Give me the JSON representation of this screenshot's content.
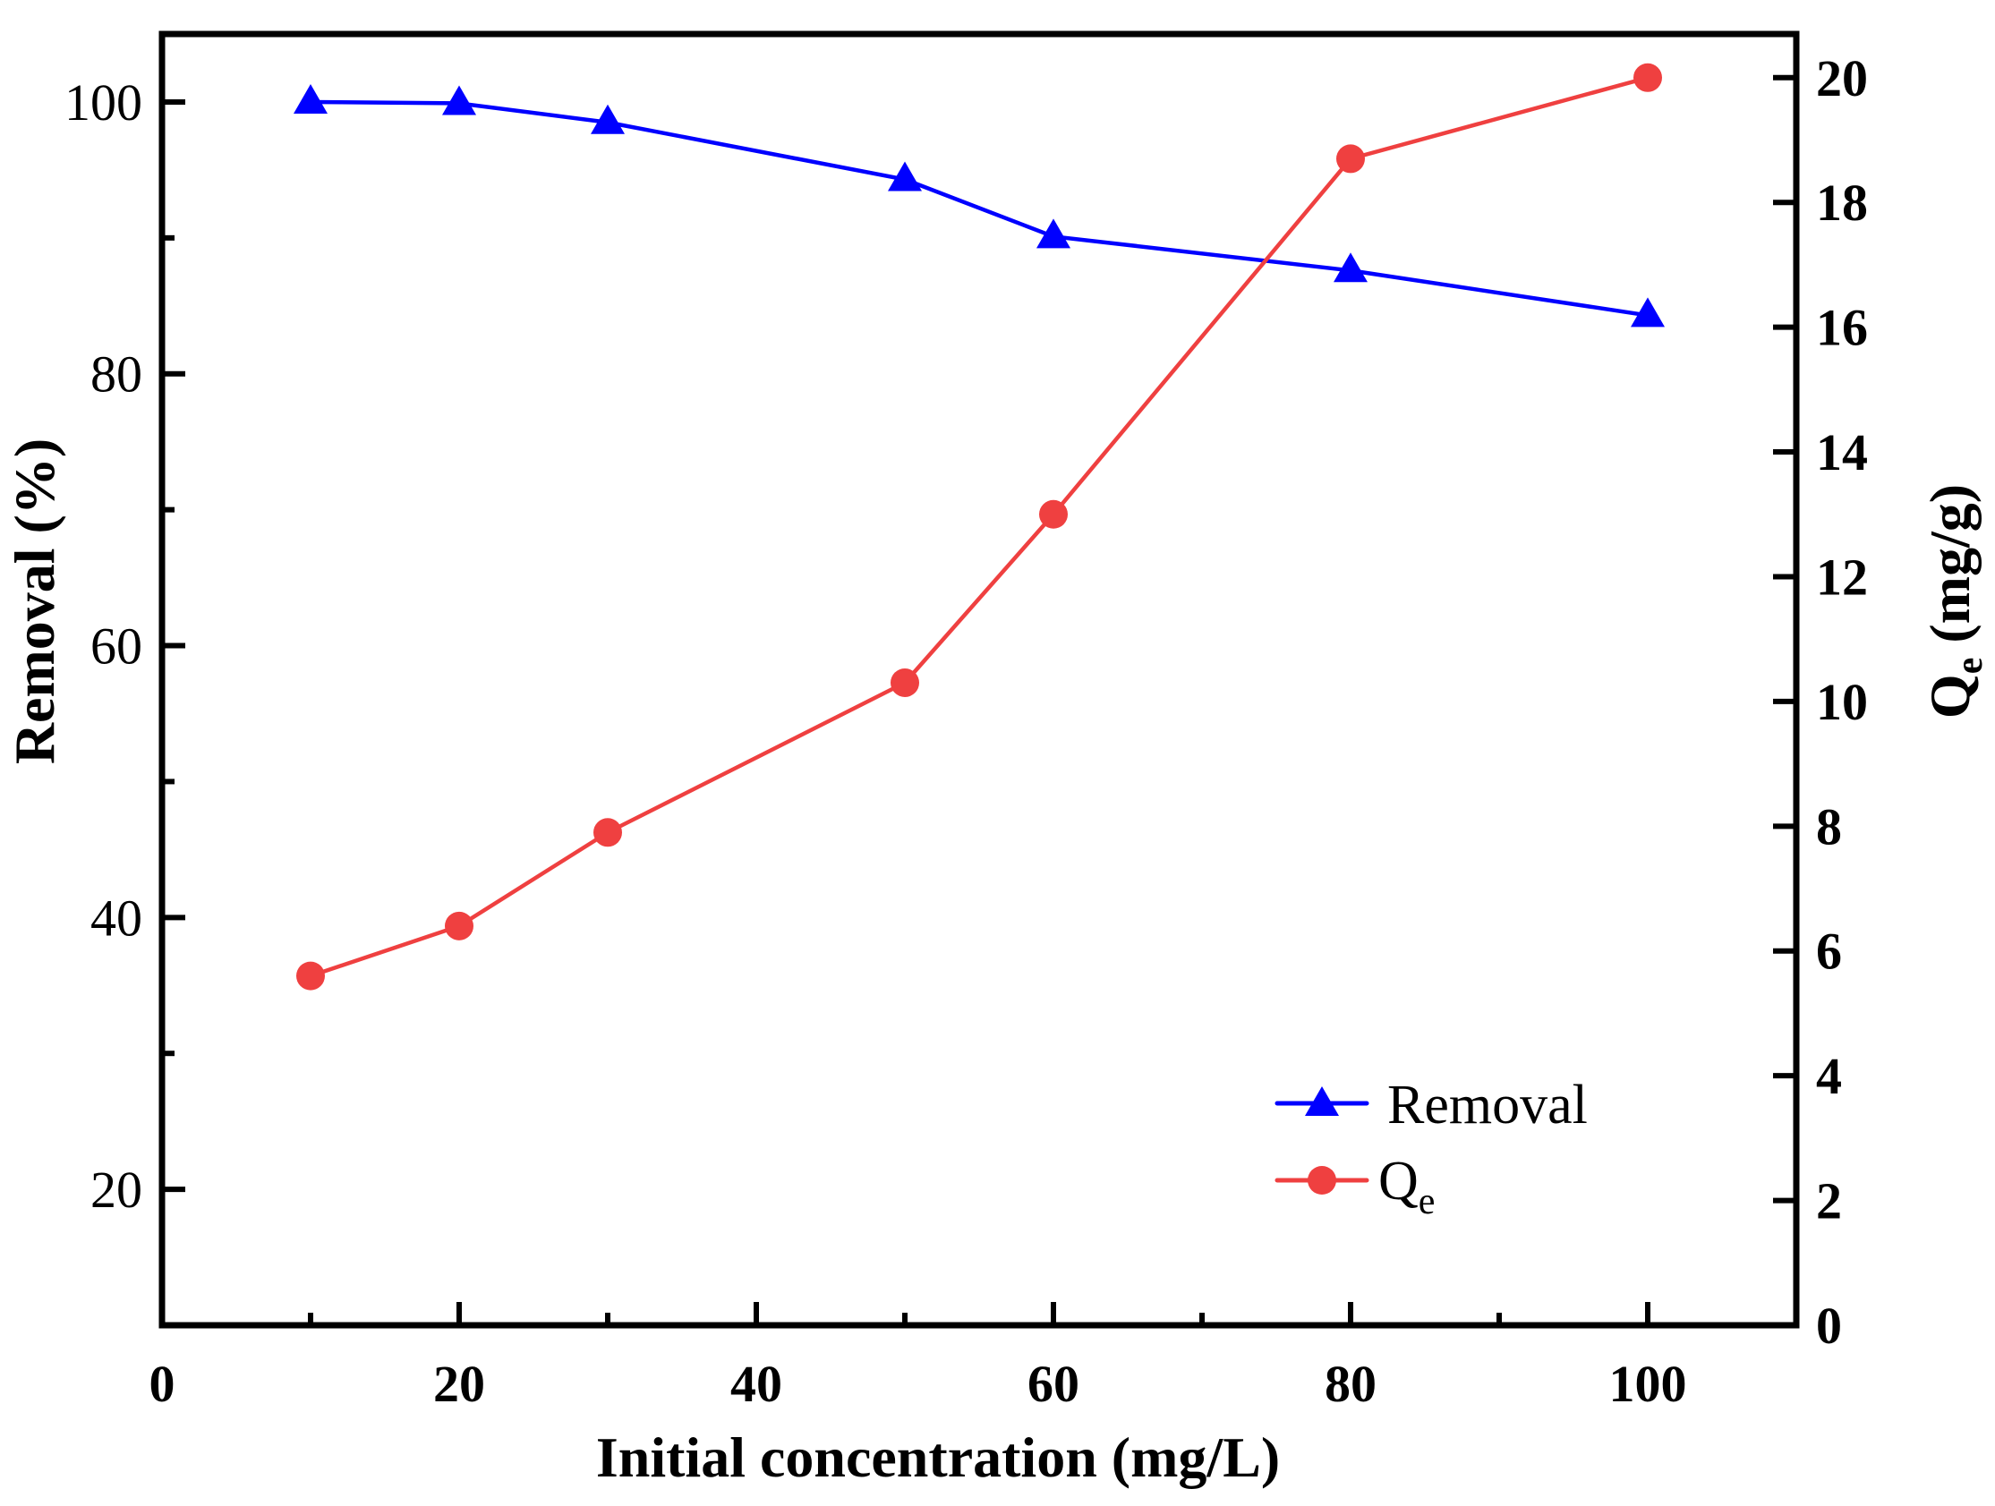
{
  "chart_data": {
    "type": "line",
    "title": "",
    "xlabel": "Initial concentration (mg/L)",
    "ylabel_left": "Removal (%)",
    "ylabel_right_main": "Q",
    "ylabel_right_sub": "e",
    "ylabel_right_unit": " (mg/g)",
    "xlim": [
      0,
      110
    ],
    "ylim_left": [
      10,
      105
    ],
    "ylim_right": [
      0,
      20.7
    ],
    "x_ticks": [
      "0",
      "20",
      "40",
      "60",
      "80",
      "100"
    ],
    "y_left_ticks": [
      "20",
      "40",
      "60",
      "80",
      "100"
    ],
    "y_right_ticks": [
      "0",
      "2",
      "4",
      "6",
      "8",
      "10",
      "12",
      "14",
      "16",
      "18",
      "20"
    ],
    "x": [
      10,
      20,
      30,
      50,
      60,
      80,
      100
    ],
    "series": [
      {
        "name": "Removal",
        "axis": "left",
        "marker": "triangle",
        "color": "#0000ff",
        "values": [
          100.0,
          99.9,
          98.5,
          94.3,
          90.1,
          87.6,
          84.3
        ]
      },
      {
        "name": "Q",
        "name_sub": "e",
        "axis": "right",
        "marker": "circle",
        "color": "#ef4040",
        "values": [
          5.6,
          6.4,
          7.9,
          10.3,
          13.0,
          18.7,
          20.0
        ]
      }
    ],
    "legend_position": "bottom-right",
    "grid": false
  }
}
